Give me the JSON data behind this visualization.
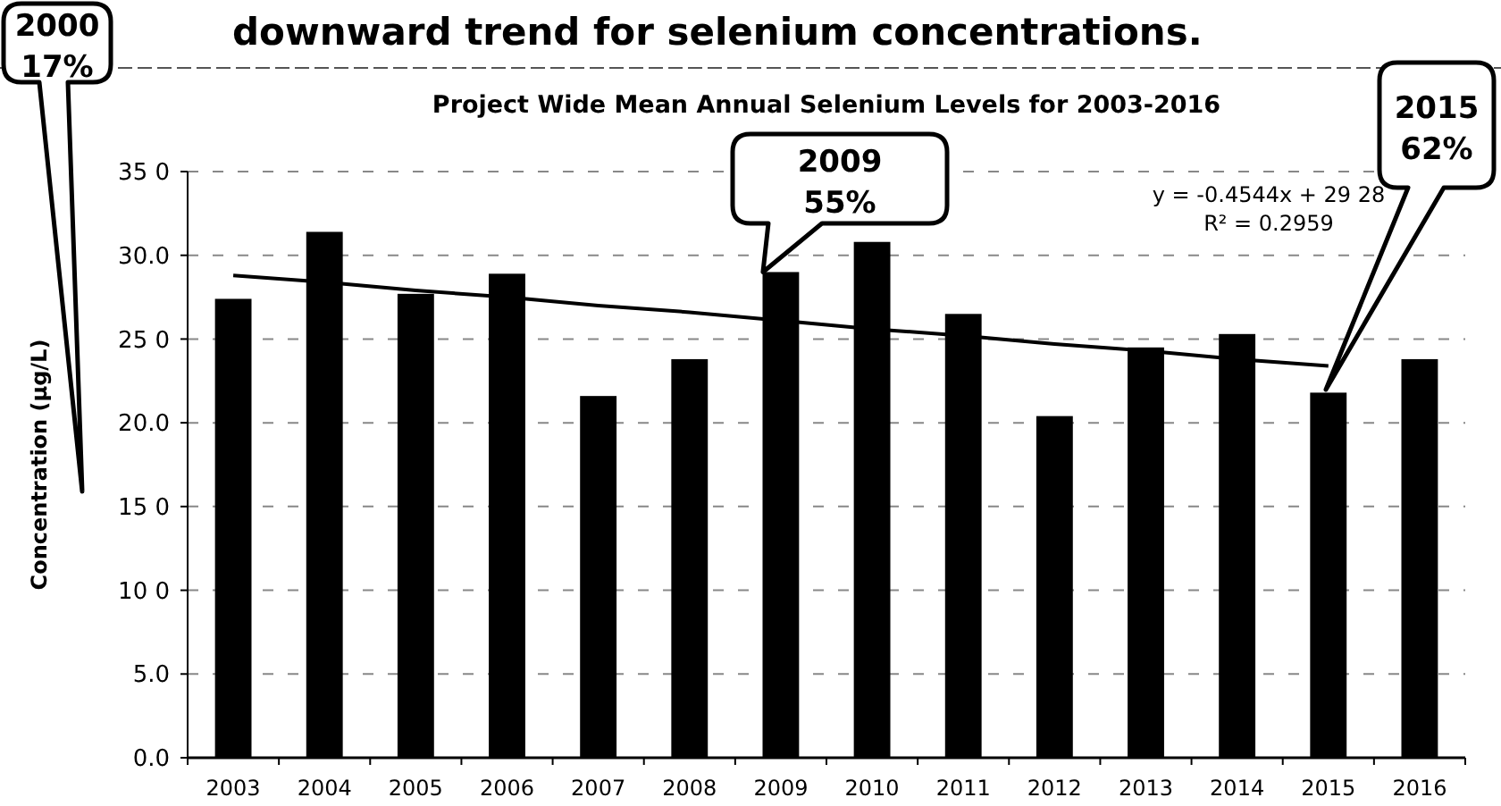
{
  "chart_data": {
    "type": "bar",
    "title": "Project Wide Mean Annual Selenium Levels for 2003-2016",
    "ylabel": "Concentration (µg/L)",
    "categories": [
      "2003",
      "2004",
      "2005",
      "2006",
      "2007",
      "2008",
      "2009",
      "2010",
      "2011",
      "2012",
      "2013",
      "2014",
      "2015",
      "2016"
    ],
    "series": [
      {
        "color": "#000000",
        "values": [
          27.4,
          31.4,
          27.7,
          28.9,
          21.6,
          23.8,
          29.0,
          30.8,
          26.5,
          20.4,
          24.5,
          25.3,
          21.8,
          23.8
        ]
      },
      {
        "type": "line",
        "color": "#000000",
        "values": [
          28.8,
          28.4,
          27.9,
          27.5,
          27.0,
          26.6,
          26.1,
          25.6,
          25.2,
          24.7,
          24.3,
          23.8,
          23.4,
          null
        ]
      }
    ],
    "ylim": [
      0,
      35
    ],
    "yticks": [
      {
        "value": 0,
        "label": "0.0"
      },
      {
        "value": 5,
        "label": "5.0"
      },
      {
        "value": 10,
        "label": "10 0"
      },
      {
        "value": 15,
        "label": "15 0"
      },
      {
        "value": 20,
        "label": "20.0"
      },
      {
        "value": 25,
        "label": "25 0"
      },
      {
        "value": 30,
        "label": "30.0"
      },
      {
        "value": 35,
        "label": "35 0"
      }
    ],
    "grid": "y",
    "marker": "none",
    "line_style": "solid",
    "annotations": [
      "downward trend for selenium concentrations.",
      "2000\n17%",
      {
        "text": "2009\n55%",
        "x": "2009",
        "y": 29.0
      },
      "2015\n62%",
      "y = -0.4544x + 29 28",
      "R² = 0.2959"
    ]
  }
}
